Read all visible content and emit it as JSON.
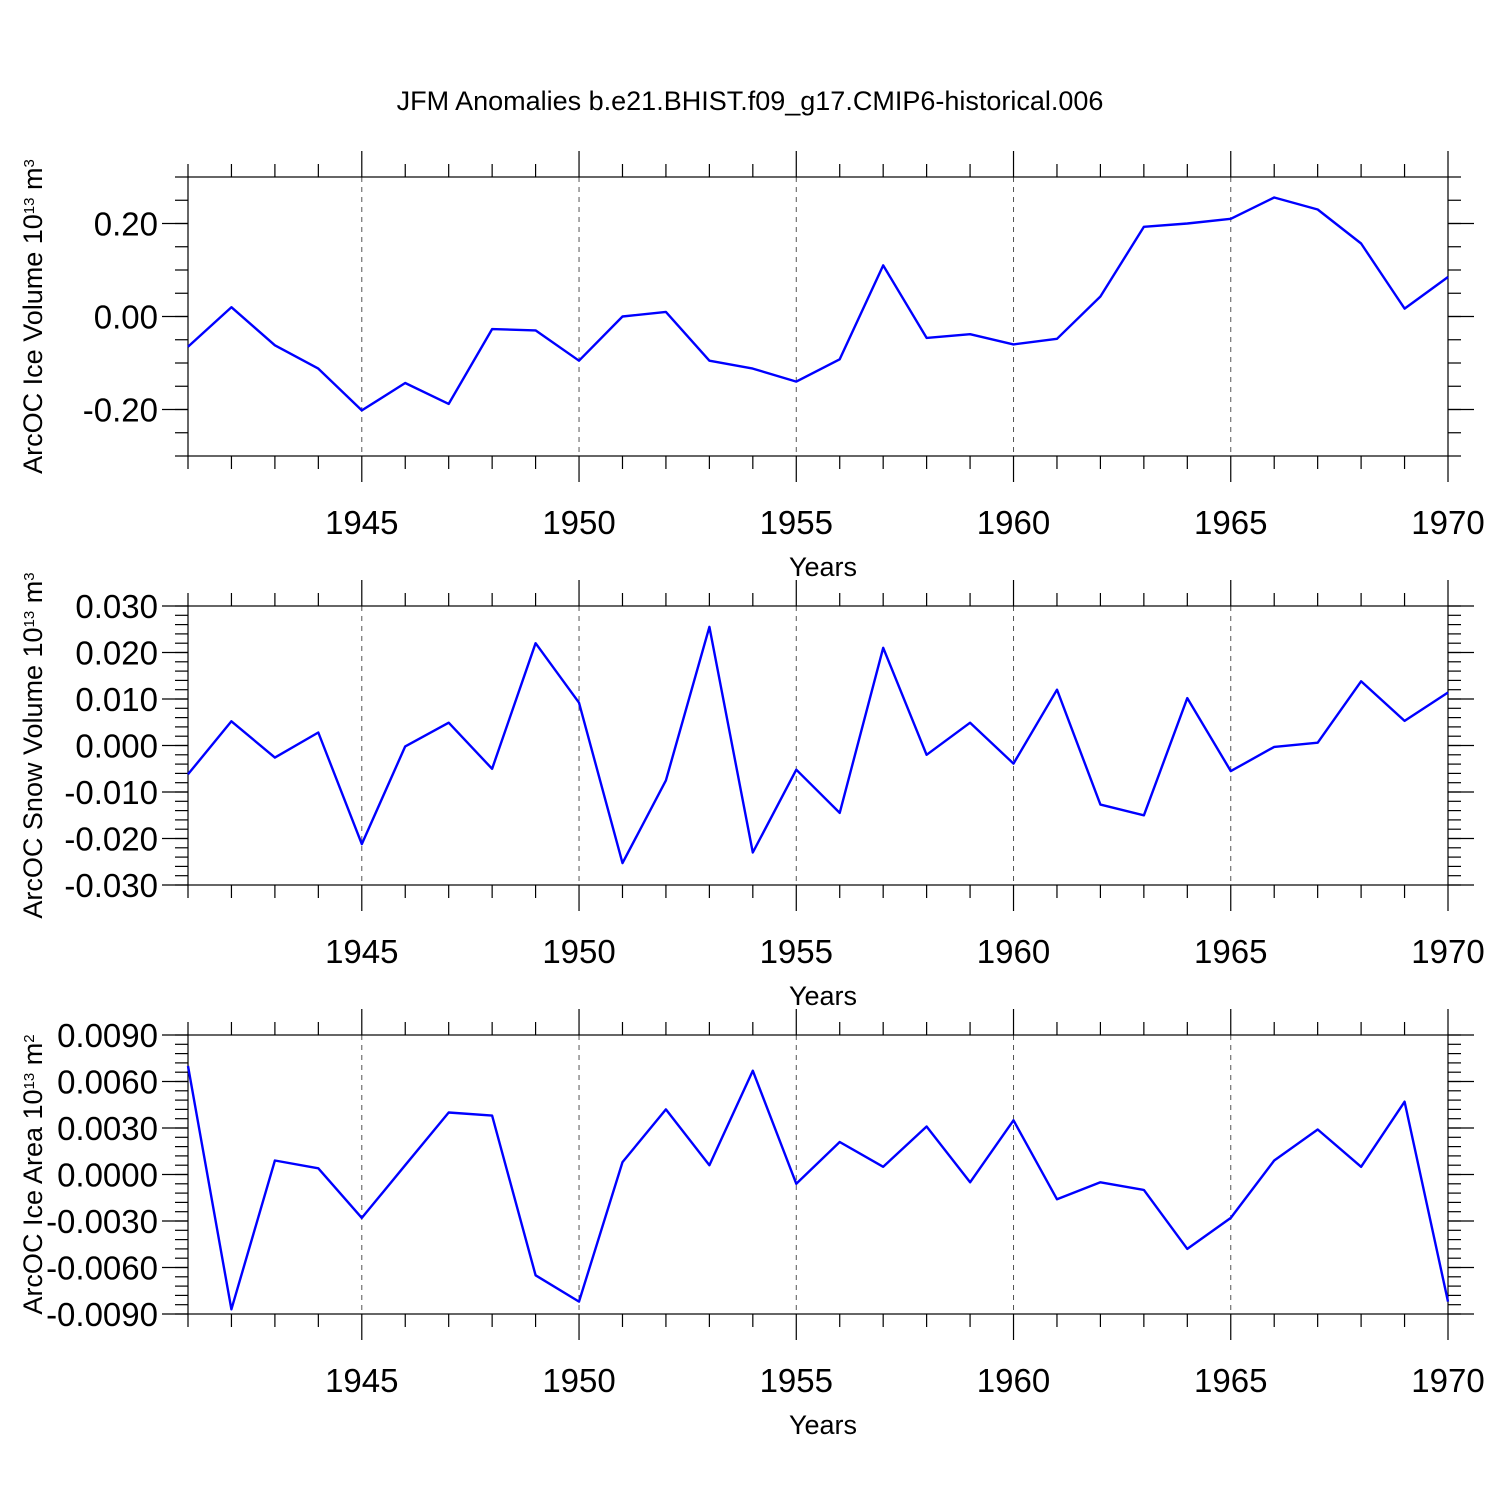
{
  "figure_title": "JFM Anomalies b.e21.BHIST.f09_g17.CMIP6-historical.006",
  "chart_data": [
    {
      "type": "line",
      "title": "",
      "xlabel": "Years",
      "ylabel": {
        "main": "ArcOC Ice Volume 10",
        "exp": "13",
        "unit": " m",
        "unit_exp": "3"
      },
      "x": [
        1941,
        1942,
        1943,
        1944,
        1945,
        1946,
        1947,
        1948,
        1949,
        1950,
        1951,
        1952,
        1953,
        1954,
        1955,
        1956,
        1957,
        1958,
        1959,
        1960,
        1961,
        1962,
        1963,
        1964,
        1965,
        1966,
        1967,
        1968,
        1969,
        1970
      ],
      "series": [
        {
          "values": [
            -0.065,
            0.02,
            -0.062,
            -0.112,
            -0.202,
            -0.143,
            -0.188,
            -0.027,
            -0.03,
            -0.095,
            0.0,
            0.01,
            -0.095,
            -0.112,
            -0.14,
            -0.092,
            0.11,
            -0.046,
            -0.038,
            -0.06,
            -0.048,
            0.043,
            0.193,
            0.2,
            0.21,
            0.256,
            0.23,
            0.157,
            0.017,
            0.085
          ],
          "color": "#0000ff"
        }
      ],
      "xlim": [
        1941,
        1970
      ],
      "ylim": [
        -0.3,
        0.3
      ],
      "yticks": [
        -0.2,
        0.0,
        0.2
      ],
      "ytick_labels": [
        "-0.20",
        "0.00",
        "0.20"
      ],
      "yminor_step": 0.05,
      "xticks": [
        1945,
        1950,
        1955,
        1960,
        1965,
        1970
      ],
      "xtick_labels": [
        "1945",
        "1950",
        "1955",
        "1960",
        "1965",
        "1970"
      ],
      "grid": "vertical dashed at major x ticks"
    },
    {
      "type": "line",
      "title": "",
      "xlabel": "Years",
      "ylabel": {
        "main": "ArcOC Snow Volume 10",
        "exp": "13",
        "unit": " m",
        "unit_exp": "3"
      },
      "x": [
        1941,
        1942,
        1943,
        1944,
        1945,
        1946,
        1947,
        1948,
        1949,
        1950,
        1951,
        1952,
        1953,
        1954,
        1955,
        1956,
        1957,
        1958,
        1959,
        1960,
        1961,
        1962,
        1963,
        1964,
        1965,
        1966,
        1967,
        1968,
        1969,
        1970
      ],
      "series": [
        {
          "values": [
            -0.0062,
            0.0052,
            -0.0026,
            0.0028,
            -0.0212,
            -0.0002,
            0.0049,
            -0.005,
            0.022,
            0.0092,
            -0.0253,
            -0.0075,
            0.0255,
            -0.023,
            -0.0052,
            -0.0145,
            0.021,
            -0.002,
            0.0049,
            -0.0039,
            0.012,
            -0.0127,
            -0.015,
            0.0102,
            -0.0055,
            -0.0003,
            0.0006,
            0.0138,
            0.0053,
            0.0114
          ],
          "color": "#0000ff"
        }
      ],
      "xlim": [
        1941,
        1970
      ],
      "ylim": [
        -0.03,
        0.03
      ],
      "yticks": [
        -0.03,
        -0.02,
        -0.01,
        0.0,
        0.01,
        0.02,
        0.03
      ],
      "ytick_labels": [
        "-0.030",
        "-0.020",
        "-0.010",
        "0.000",
        "0.010",
        "0.020",
        "0.030"
      ],
      "yminor_step": 0.002,
      "xticks": [
        1945,
        1950,
        1955,
        1960,
        1965,
        1970
      ],
      "xtick_labels": [
        "1945",
        "1950",
        "1955",
        "1960",
        "1965",
        "1970"
      ],
      "grid": "vertical dashed at major x ticks"
    },
    {
      "type": "line",
      "title": "",
      "xlabel": "Years",
      "ylabel": {
        "main": "ArcOC Ice Area 10",
        "exp": "13",
        "unit": " m",
        "unit_exp": "2"
      },
      "x": [
        1941,
        1942,
        1943,
        1944,
        1945,
        1946,
        1947,
        1948,
        1949,
        1950,
        1951,
        1952,
        1953,
        1954,
        1955,
        1956,
        1957,
        1958,
        1959,
        1960,
        1961,
        1962,
        1963,
        1964,
        1965,
        1966,
        1967,
        1968,
        1969,
        1970
      ],
      "series": [
        {
          "values": [
            0.007,
            -0.0087,
            0.0009,
            0.0004,
            -0.0028,
            0.0006,
            0.004,
            0.0038,
            -0.0065,
            -0.0082,
            0.0008,
            0.0042,
            0.0006,
            0.0067,
            -0.0006,
            0.0021,
            0.0005,
            0.0031,
            -0.0005,
            0.0035,
            -0.0016,
            -0.0005,
            -0.001,
            -0.0048,
            -0.0028,
            0.0009,
            0.0029,
            0.0005,
            0.0047,
            -0.0082
          ],
          "color": "#0000ff"
        }
      ],
      "xlim": [
        1941,
        1970
      ],
      "ylim": [
        -0.009,
        0.009
      ],
      "yticks": [
        -0.009,
        -0.006,
        -0.003,
        0.0,
        0.003,
        0.006,
        0.009
      ],
      "ytick_labels": [
        "-0.0090",
        "-0.0060",
        "-0.0030",
        "0.0000",
        "0.0030",
        "0.0060",
        "0.0090"
      ],
      "yminor_step": 0.0006,
      "xticks": [
        1945,
        1950,
        1955,
        1960,
        1965,
        1970
      ],
      "xtick_labels": [
        "1945",
        "1950",
        "1955",
        "1960",
        "1965",
        "1970"
      ],
      "grid": "vertical dashed at major x ticks"
    }
  ]
}
